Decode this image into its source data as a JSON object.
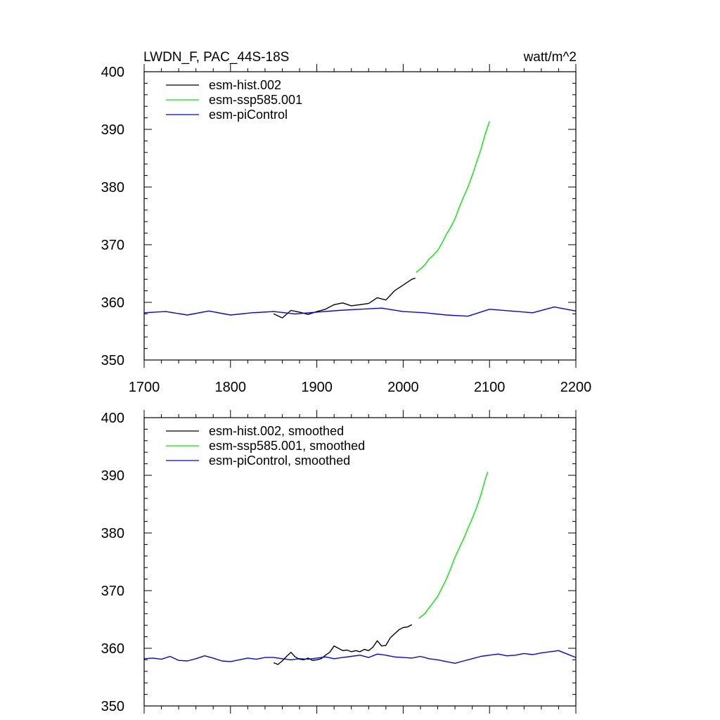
{
  "header": {
    "title": "LWDN_F, PAC_44S-18S",
    "units": "watt/m^2"
  },
  "colors": {
    "hist": "#000000",
    "ssp": "#00ee00",
    "ctrl": "#0000ff"
  },
  "chart_data": [
    {
      "type": "line",
      "panel": "top",
      "xlim": [
        1700,
        2200
      ],
      "ylim": [
        350,
        400
      ],
      "xticks": [
        1700,
        1800,
        1900,
        2000,
        2100,
        2200
      ],
      "yticks": [
        350,
        360,
        370,
        380,
        390,
        400
      ],
      "xtick_labels": [
        "1700",
        "1800",
        "1900",
        "2000",
        "2100",
        "2200"
      ],
      "ytick_labels": [
        "350",
        "360",
        "370",
        "380",
        "390",
        "400"
      ],
      "legend": [
        "esm-hist.002",
        "esm-ssp585.001",
        "esm-piControl"
      ],
      "legend_position": "top-left",
      "series": [
        {
          "name": "esm-hist.002",
          "color_key": "hist",
          "x": [
            1850,
            1860,
            1870,
            1880,
            1890,
            1900,
            1910,
            1920,
            1930,
            1940,
            1950,
            1960,
            1970,
            1980,
            1990,
            2000,
            2010,
            2014
          ],
          "y": [
            358.0,
            357.3,
            358.6,
            358.3,
            357.9,
            358.4,
            358.8,
            359.6,
            359.9,
            359.4,
            359.6,
            359.8,
            360.8,
            360.4,
            362.0,
            363.0,
            364.0,
            364.2
          ]
        },
        {
          "name": "esm-ssp585.001",
          "color_key": "ssp",
          "x": [
            2015,
            2020,
            2025,
            2030,
            2035,
            2040,
            2045,
            2050,
            2055,
            2060,
            2065,
            2070,
            2075,
            2080,
            2085,
            2090,
            2095,
            2100
          ],
          "y": [
            365.2,
            365.8,
            366.5,
            367.5,
            368.2,
            369.0,
            370.3,
            371.8,
            373.0,
            374.5,
            376.5,
            378.3,
            380.0,
            382.0,
            384.3,
            386.5,
            389.2,
            391.4
          ]
        },
        {
          "name": "esm-piControl",
          "color_key": "ctrl",
          "x": [
            1700,
            1725,
            1750,
            1775,
            1800,
            1825,
            1850,
            1875,
            1900,
            1925,
            1950,
            1975,
            2000,
            2025,
            2050,
            2075,
            2100,
            2125,
            2150,
            2175,
            2200
          ],
          "y": [
            358.2,
            358.4,
            357.8,
            358.5,
            357.8,
            358.2,
            358.4,
            358.0,
            358.3,
            358.6,
            358.8,
            359.0,
            358.4,
            358.2,
            357.8,
            357.6,
            358.8,
            358.5,
            358.2,
            359.2,
            358.5
          ]
        }
      ]
    },
    {
      "type": "line",
      "panel": "bottom",
      "xlim": [
        1700,
        2200
      ],
      "ylim": [
        350,
        400
      ],
      "xticks": [
        1700,
        1800,
        1900,
        2000,
        2100,
        2200
      ],
      "yticks": [
        350,
        360,
        370,
        380,
        390,
        400
      ],
      "ytick_labels": [
        "350",
        "360",
        "370",
        "380",
        "390",
        "400"
      ],
      "legend": [
        "esm-hist.002, smoothed",
        "esm-ssp585.001, smoothed",
        "esm-piControl, smoothed"
      ],
      "legend_position": "top-left",
      "series": [
        {
          "name": "esm-hist.002, smoothed",
          "color_key": "hist",
          "x": [
            1850,
            1855,
            1860,
            1865,
            1870,
            1875,
            1880,
            1885,
            1890,
            1895,
            1900,
            1905,
            1910,
            1915,
            1920,
            1925,
            1930,
            1935,
            1940,
            1945,
            1950,
            1955,
            1960,
            1965,
            1970,
            1975,
            1980,
            1985,
            1990,
            1995,
            2000,
            2005,
            2010
          ],
          "y": [
            357.5,
            357.2,
            357.8,
            358.6,
            359.3,
            358.5,
            358.1,
            358.0,
            358.3,
            357.9,
            358.0,
            358.2,
            358.8,
            359.3,
            360.4,
            360.0,
            359.6,
            359.7,
            359.4,
            359.6,
            359.4,
            359.8,
            359.6,
            360.2,
            361.3,
            360.4,
            360.5,
            361.8,
            362.5,
            363.2,
            363.6,
            363.7,
            364.1
          ]
        },
        {
          "name": "esm-ssp585.001, smoothed",
          "color_key": "ssp",
          "x": [
            2018,
            2025,
            2030,
            2035,
            2040,
            2045,
            2050,
            2055,
            2060,
            2065,
            2070,
            2075,
            2080,
            2085,
            2090,
            2095,
            2098
          ],
          "y": [
            365.2,
            366.0,
            367.0,
            368.0,
            369.0,
            370.5,
            372.0,
            373.8,
            375.8,
            377.4,
            379.0,
            380.8,
            382.5,
            384.4,
            386.6,
            389.3,
            390.6
          ]
        },
        {
          "name": "esm-piControl, smoothed",
          "color_key": "ctrl",
          "x": [
            1700,
            1710,
            1720,
            1730,
            1740,
            1750,
            1760,
            1770,
            1780,
            1790,
            1800,
            1810,
            1820,
            1830,
            1840,
            1850,
            1860,
            1870,
            1880,
            1890,
            1900,
            1910,
            1920,
            1930,
            1940,
            1950,
            1960,
            1970,
            1980,
            1990,
            2000,
            2010,
            2020,
            2030,
            2040,
            2050,
            2060,
            2070,
            2080,
            2090,
            2100,
            2110,
            2120,
            2130,
            2140,
            2150,
            2160,
            2170,
            2180,
            2190,
            2200
          ],
          "y": [
            358.2,
            358.3,
            358.1,
            358.6,
            357.9,
            357.8,
            358.2,
            358.7,
            358.3,
            357.8,
            357.7,
            358.0,
            358.3,
            358.1,
            358.4,
            358.4,
            358.2,
            358.0,
            358.2,
            358.1,
            358.3,
            358.5,
            358.2,
            358.4,
            358.6,
            358.8,
            358.4,
            359.0,
            358.8,
            358.5,
            358.4,
            358.3,
            358.6,
            358.2,
            358.0,
            357.7,
            357.4,
            357.8,
            358.2,
            358.6,
            358.8,
            359.0,
            358.7,
            358.8,
            359.1,
            358.9,
            359.2,
            359.4,
            359.6,
            359.0,
            358.4
          ]
        }
      ]
    }
  ]
}
